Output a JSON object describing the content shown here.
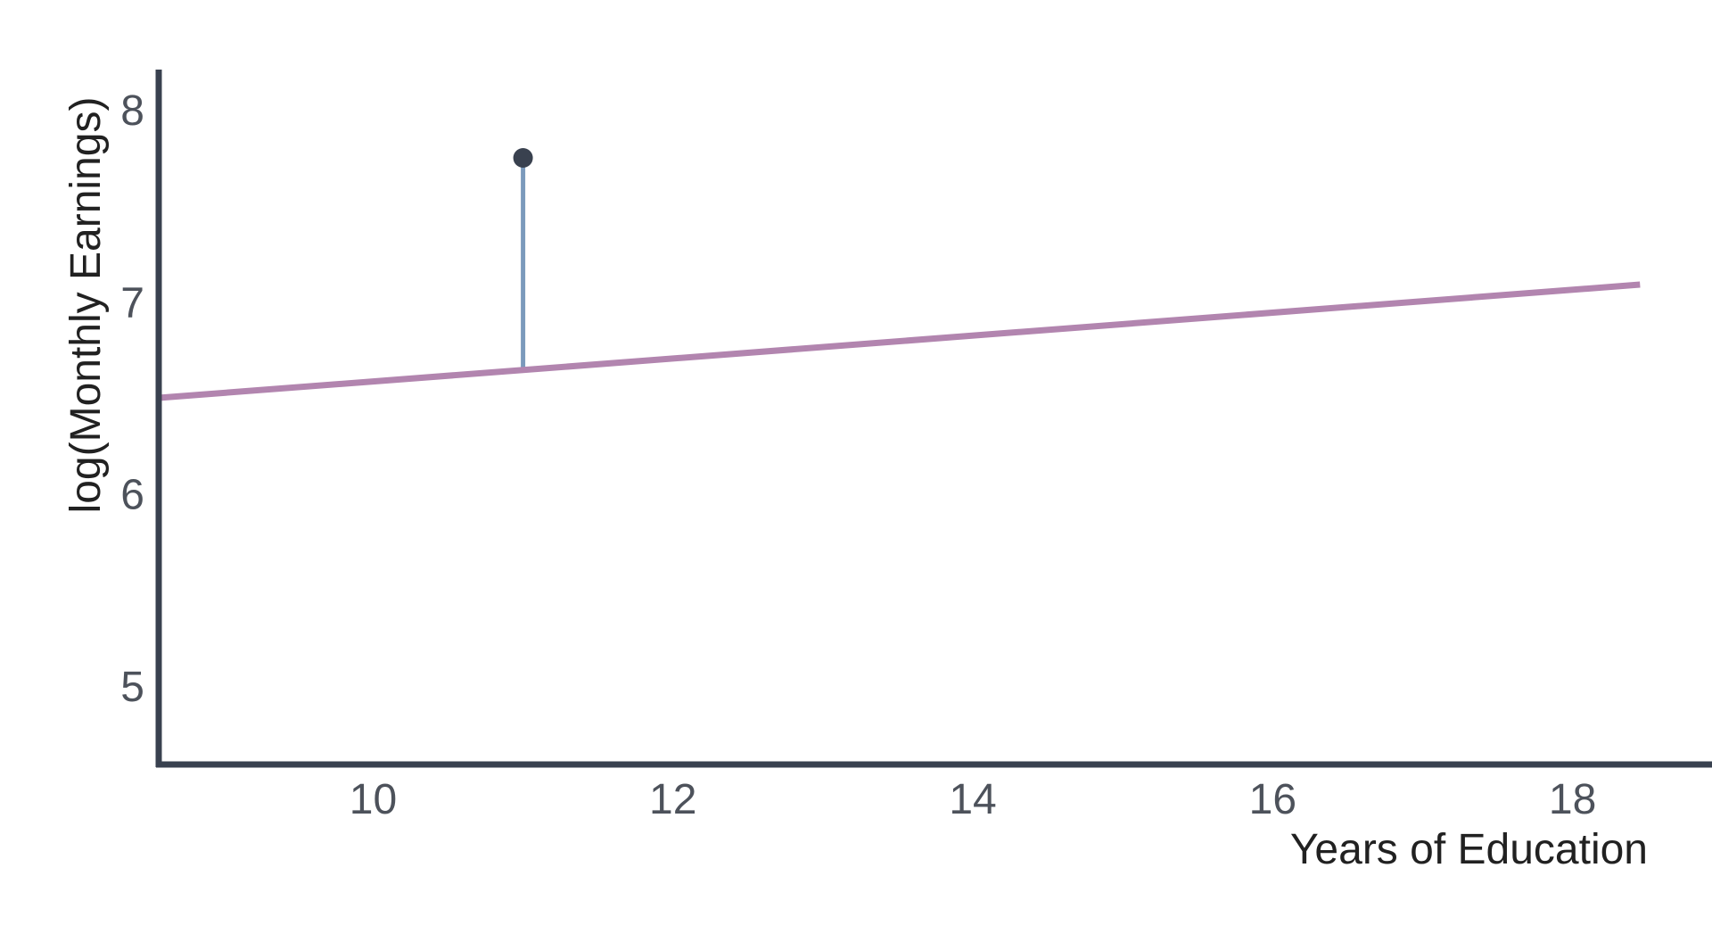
{
  "chart_data": {
    "type": "scatter",
    "title": "",
    "xlabel": "Years of Education",
    "ylabel": "log(Monthly Earnings)",
    "x_ticks": [
      10,
      12,
      14,
      16,
      18
    ],
    "y_ticks": [
      5,
      6,
      7,
      8
    ],
    "xlim": [
      8.57,
      18.93
    ],
    "ylim": [
      4.59,
      8.21
    ],
    "grid": false,
    "legend": "none",
    "regression_line": {
      "name": "fitted-regression-line",
      "x1": 8.57,
      "y1": 6.5,
      "x2": 18.45,
      "y2": 7.09,
      "slope_per_year": 0.06,
      "color": "#b285af",
      "width": 7
    },
    "points": [
      {
        "x": 11,
        "y": 7.75,
        "color": "#39414f",
        "radius": 11
      }
    ],
    "residual_segment": {
      "x": 11,
      "y_from": 6.65,
      "y_to": 7.75,
      "color": "#7b9abc",
      "width": 5
    },
    "colors": {
      "axis": "#39414f",
      "tick_label": "#4d525b",
      "axis_label": "#212121",
      "background": "#ffffff"
    }
  }
}
